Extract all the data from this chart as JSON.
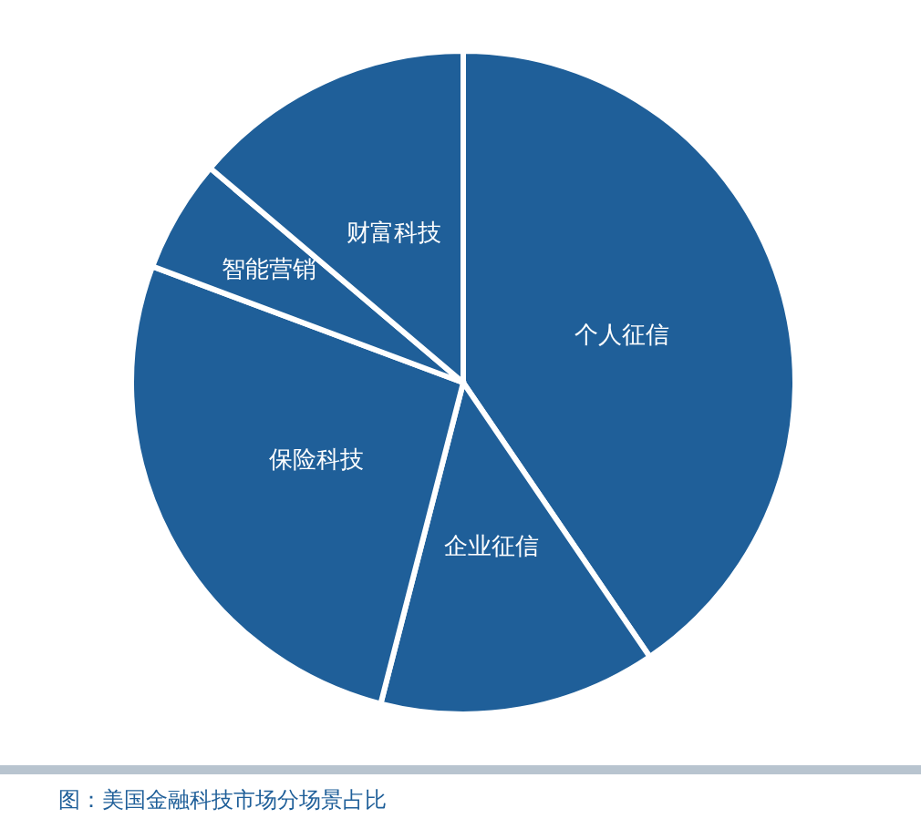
{
  "chart_data": {
    "type": "pie",
    "categories": [
      "个人征信",
      "企业征信",
      "保险科技",
      "智能营销",
      "财富科技"
    ],
    "values": [
      40.5,
      13.5,
      26.7,
      5.5,
      13.8
    ],
    "colors": [
      "#1f5f99",
      "#1f5f99",
      "#1f5f99",
      "#1f5f99",
      "#1f5f99"
    ],
    "annotations": [
      "图：美国金融科技市场分场景占比"
    ]
  }
}
